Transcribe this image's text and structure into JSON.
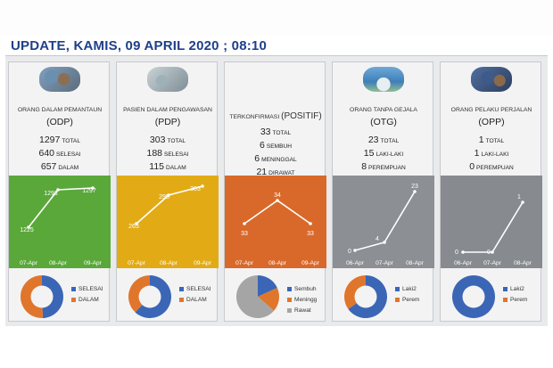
{
  "header": {
    "title": "UPDATE, KAMIS, 09 APRIL 2020 ; 08:10"
  },
  "colors": {
    "green": "#5aa83a",
    "yellow": "#e2ab16",
    "orange": "#d9692a",
    "gray1": "#8c8f93",
    "gray2": "#878b8f",
    "blue": "#3b66b5",
    "pieorange": "#e0762b",
    "piegray": "#a5a5a5"
  },
  "panels": [
    {
      "id": "odp",
      "photo": "people-group-photo",
      "subtitle": "ORANG DALAM PEMANTAUN",
      "abbr": "(ODP)",
      "stats": [
        {
          "value": "1297",
          "label": "TOTAL"
        },
        {
          "value": "640",
          "label": "SELESAI"
        },
        {
          "value": "657",
          "label": "DALAM"
        }
      ],
      "chart": {
        "color_key": "green",
        "x": [
          "07-Apr",
          "08-Apr",
          "09-Apr"
        ],
        "y": [
          1225,
          1293,
          1297
        ],
        "labels": [
          "1225",
          "1293",
          "1297"
        ]
      },
      "pie": {
        "slices": [
          {
            "name": "SELESAI",
            "value": 640,
            "color_key": "blue"
          },
          {
            "name": "DALAM",
            "value": 657,
            "color_key": "pieorange"
          }
        ]
      }
    },
    {
      "id": "pdp",
      "photo": "hospital-ward-photo",
      "subtitle": "PASIEN DALAM PENGAWASAN",
      "abbr": "(PDP)",
      "stats": [
        {
          "value": "303",
          "label": "TOTAL"
        },
        {
          "value": "188",
          "label": "SELESAI"
        },
        {
          "value": "115",
          "label": "DALAM"
        }
      ],
      "chart": {
        "color_key": "yellow",
        "x": [
          "07-Apr",
          "08-Apr",
          "09-Apr"
        ],
        "y": [
          265,
          295,
          303
        ],
        "labels": [
          "265",
          "295",
          "303"
        ]
      },
      "pie": {
        "slices": [
          {
            "name": "SELESAI",
            "value": 188,
            "color_key": "blue"
          },
          {
            "name": "DALAM",
            "value": 115,
            "color_key": "pieorange"
          }
        ]
      }
    },
    {
      "id": "positif",
      "photo": "",
      "subtitle": "TERKONFIRMASI",
      "subtitle_big": "(POSITIF)",
      "stats": [
        {
          "value": "33",
          "label": "TOTAL"
        },
        {
          "value": "6",
          "label": "SEMBUH"
        },
        {
          "value": "6",
          "label": "MENINGGAL"
        },
        {
          "value": "21",
          "label": "DIRAWAT"
        }
      ],
      "chart": {
        "color_key": "orange",
        "x": [
          "07-Apr",
          "08-Apr",
          "09-Apr"
        ],
        "y": [
          33,
          34,
          33
        ],
        "labels": [
          "33",
          "34",
          "33"
        ]
      },
      "pie": {
        "slices": [
          {
            "name": "Sembuh",
            "value": 6,
            "color_key": "blue"
          },
          {
            "name": "Meningg",
            "value": 6,
            "color_key": "pieorange"
          },
          {
            "name": "Rawat",
            "value": 21,
            "color_key": "piegray"
          }
        ]
      }
    },
    {
      "id": "otg",
      "photo": "outdoor-group-photo",
      "subtitle": "ORANG TANPA GEJALA",
      "abbr": "(OTG)",
      "stats": [
        {
          "value": "23",
          "label": "TOTAL"
        },
        {
          "value": "15",
          "label": "LAKI-LAKI"
        },
        {
          "value": "8",
          "label": "PEREMPUAN"
        }
      ],
      "chart": {
        "color_key": "gray1",
        "x": [
          "06-Apr",
          "07-Apr",
          "08-Apr"
        ],
        "y": [
          0,
          4,
          23
        ],
        "labels": [
          "0",
          "4",
          "23"
        ]
      },
      "pie": {
        "slices": [
          {
            "name": "Laki2",
            "value": 15,
            "color_key": "blue"
          },
          {
            "name": "Perem",
            "value": 8,
            "color_key": "pieorange"
          }
        ]
      }
    },
    {
      "id": "opp",
      "photo": "crowd-photo",
      "subtitle": "ORANG PELAKU PERJALAN",
      "abbr": "(OPP)",
      "stats": [
        {
          "value": "1",
          "label": "TOTAL"
        },
        {
          "value": "1",
          "label": "LAKI-LAKI"
        },
        {
          "value": "0",
          "label": "PEREMPUAN"
        }
      ],
      "chart": {
        "color_key": "gray2",
        "x": [
          "06-Apr",
          "07-Apr",
          "08-Apr"
        ],
        "y": [
          0,
          0,
          1
        ],
        "labels": [
          "0",
          "0",
          "1"
        ]
      },
      "pie": {
        "slices": [
          {
            "name": "Laki2",
            "value": 1,
            "color_key": "blue"
          },
          {
            "name": "Perem",
            "value": 0,
            "color_key": "pieorange"
          }
        ]
      }
    }
  ],
  "chart_data": [
    {
      "type": "line",
      "x": [
        "07-Apr",
        "08-Apr",
        "09-Apr"
      ],
      "series": [
        {
          "values": [
            1225,
            1293,
            1297
          ]
        }
      ]
    },
    {
      "type": "line",
      "x": [
        "07-Apr",
        "08-Apr",
        "09-Apr"
      ],
      "series": [
        {
          "values": [
            265,
            295,
            303
          ]
        }
      ]
    },
    {
      "type": "line",
      "x": [
        "07-Apr",
        "08-Apr",
        "09-Apr"
      ],
      "series": [
        {
          "values": [
            33,
            34,
            33
          ]
        }
      ]
    },
    {
      "type": "line",
      "x": [
        "06-Apr",
        "07-Apr",
        "08-Apr"
      ],
      "series": [
        {
          "values": [
            0,
            4,
            23
          ]
        }
      ]
    },
    {
      "type": "line",
      "x": [
        "06-Apr",
        "07-Apr",
        "08-Apr"
      ],
      "series": [
        {
          "values": [
            0,
            0,
            1
          ]
        }
      ]
    },
    {
      "type": "pie",
      "categories": [
        "SELESAI",
        "DALAM"
      ],
      "values": [
        640,
        657
      ]
    },
    {
      "type": "pie",
      "categories": [
        "SELESAI",
        "DALAM"
      ],
      "values": [
        188,
        115
      ]
    },
    {
      "type": "pie",
      "categories": [
        "Sembuh",
        "Meningg",
        "Rawat"
      ],
      "values": [
        6,
        6,
        21
      ]
    },
    {
      "type": "pie",
      "categories": [
        "Laki2",
        "Perem"
      ],
      "values": [
        15,
        8
      ]
    },
    {
      "type": "pie",
      "categories": [
        "Laki2",
        "Perem"
      ],
      "values": [
        1,
        0
      ]
    }
  ]
}
